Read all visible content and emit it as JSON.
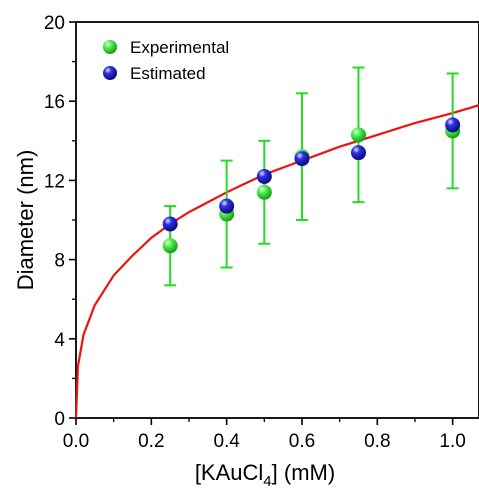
{
  "chart_data": {
    "type": "scatter",
    "xlabel": "[KAuCl4] (mM)",
    "xlabel_parts": {
      "pre": "[KAuCl",
      "sub": "4",
      "post": "] (mM)"
    },
    "ylabel": "Diameter (nm)",
    "xlim": [
      0.0,
      1.07
    ],
    "ylim": [
      0,
      20
    ],
    "x_ticks": [
      0.0,
      0.2,
      0.4,
      0.6,
      0.8,
      1.0
    ],
    "x_tick_labels": [
      "0.0",
      "0.2",
      "0.4",
      "0.6",
      "0.8",
      "1.0"
    ],
    "y_ticks": [
      0,
      4,
      8,
      12,
      16,
      20
    ],
    "y_tick_labels": [
      "0",
      "4",
      "8",
      "12",
      "16",
      "20"
    ],
    "grid": false,
    "legend_position": "top-left",
    "series": [
      {
        "name": "Experimental",
        "color": "#22dd22",
        "marker": "sphere",
        "points": [
          {
            "x": 0.25,
            "y": 8.7,
            "err_low": 6.7,
            "err_high": 10.7
          },
          {
            "x": 0.4,
            "y": 10.3,
            "err_low": 7.6,
            "err_high": 13.0
          },
          {
            "x": 0.5,
            "y": 11.4,
            "err_low": 8.8,
            "err_high": 14.0
          },
          {
            "x": 0.6,
            "y": 13.2,
            "err_low": 10.0,
            "err_high": 16.4
          },
          {
            "x": 0.75,
            "y": 14.3,
            "err_low": 10.9,
            "err_high": 17.7
          },
          {
            "x": 1.0,
            "y": 14.5,
            "err_low": 11.6,
            "err_high": 17.4
          }
        ]
      },
      {
        "name": "Estimated",
        "color": "#1a1acc",
        "marker": "sphere",
        "points": [
          {
            "x": 0.25,
            "y": 9.8
          },
          {
            "x": 0.4,
            "y": 10.7
          },
          {
            "x": 0.5,
            "y": 12.2
          },
          {
            "x": 0.6,
            "y": 13.1
          },
          {
            "x": 0.75,
            "y": 13.4
          },
          {
            "x": 1.0,
            "y": 14.8
          }
        ]
      }
    ],
    "fit_curve": {
      "color": "#ee1111",
      "points": [
        {
          "x": 0.0,
          "y": 0.0
        },
        {
          "x": 0.005,
          "y": 2.6
        },
        {
          "x": 0.02,
          "y": 4.2
        },
        {
          "x": 0.05,
          "y": 5.7
        },
        {
          "x": 0.1,
          "y": 7.2
        },
        {
          "x": 0.15,
          "y": 8.2
        },
        {
          "x": 0.2,
          "y": 9.1
        },
        {
          "x": 0.25,
          "y": 9.8
        },
        {
          "x": 0.3,
          "y": 10.4
        },
        {
          "x": 0.4,
          "y": 11.4
        },
        {
          "x": 0.5,
          "y": 12.3
        },
        {
          "x": 0.6,
          "y": 13.0
        },
        {
          "x": 0.7,
          "y": 13.7
        },
        {
          "x": 0.8,
          "y": 14.3
        },
        {
          "x": 0.9,
          "y": 14.9
        },
        {
          "x": 1.0,
          "y": 15.4
        },
        {
          "x": 1.07,
          "y": 15.8
        }
      ]
    }
  }
}
